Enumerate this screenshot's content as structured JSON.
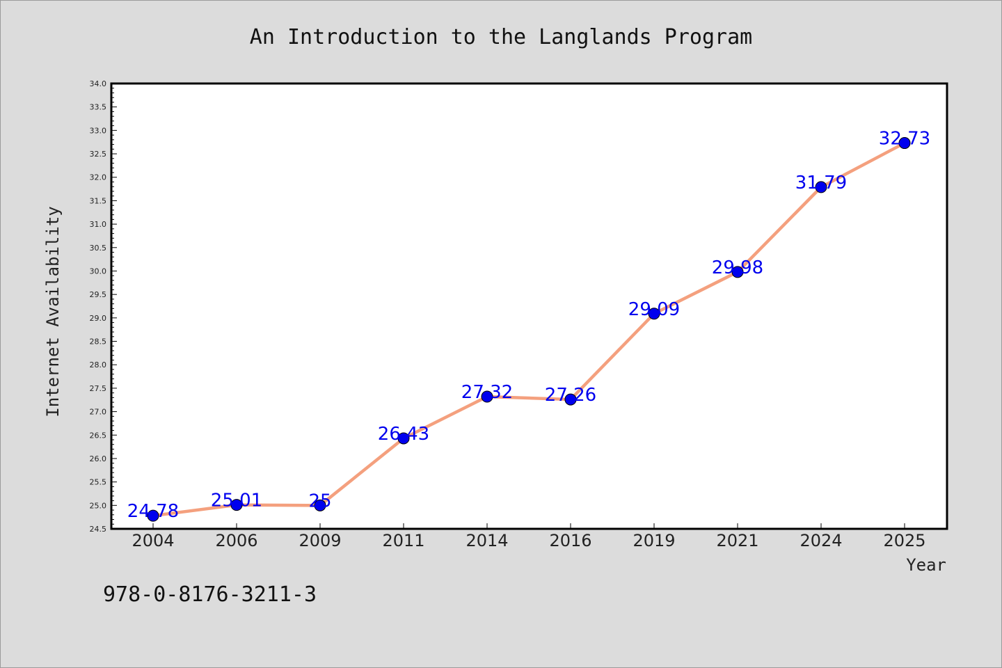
{
  "chart_data": {
    "type": "line",
    "title": "An Introduction to the Langlands Program",
    "xlabel": "Year",
    "ylabel": "Internet Availability",
    "categories": [
      "2004",
      "2006",
      "2009",
      "2011",
      "2014",
      "2016",
      "2019",
      "2021",
      "2024",
      "2025"
    ],
    "series": [
      {
        "values": [
          24.78,
          25.01,
          25,
          26.43,
          27.32,
          27.26,
          29.09,
          29.98,
          31.79,
          32.73
        ],
        "labels": [
          "24.78",
          "25.01",
          "25",
          "26.43",
          "27.32",
          "27.26",
          "29.09",
          "29.98",
          "31.79",
          "32.73"
        ],
        "line_color": "#f4a07e",
        "marker_color": "#0000ee"
      }
    ],
    "ylim": [
      24.5,
      34.0
    ],
    "yticks": [
      "24.5",
      "25.0",
      "25.5",
      "26.0",
      "26.5",
      "27.0",
      "27.5",
      "28.0",
      "28.5",
      "29.0",
      "29.5",
      "30.0",
      "30.5",
      "31.0",
      "31.5",
      "32.0",
      "32.5",
      "33.0",
      "33.5",
      "34.0"
    ],
    "grid": false,
    "label_color": "#0000ee"
  },
  "footer": {
    "isbn": "978-0-8176-3211-3"
  }
}
